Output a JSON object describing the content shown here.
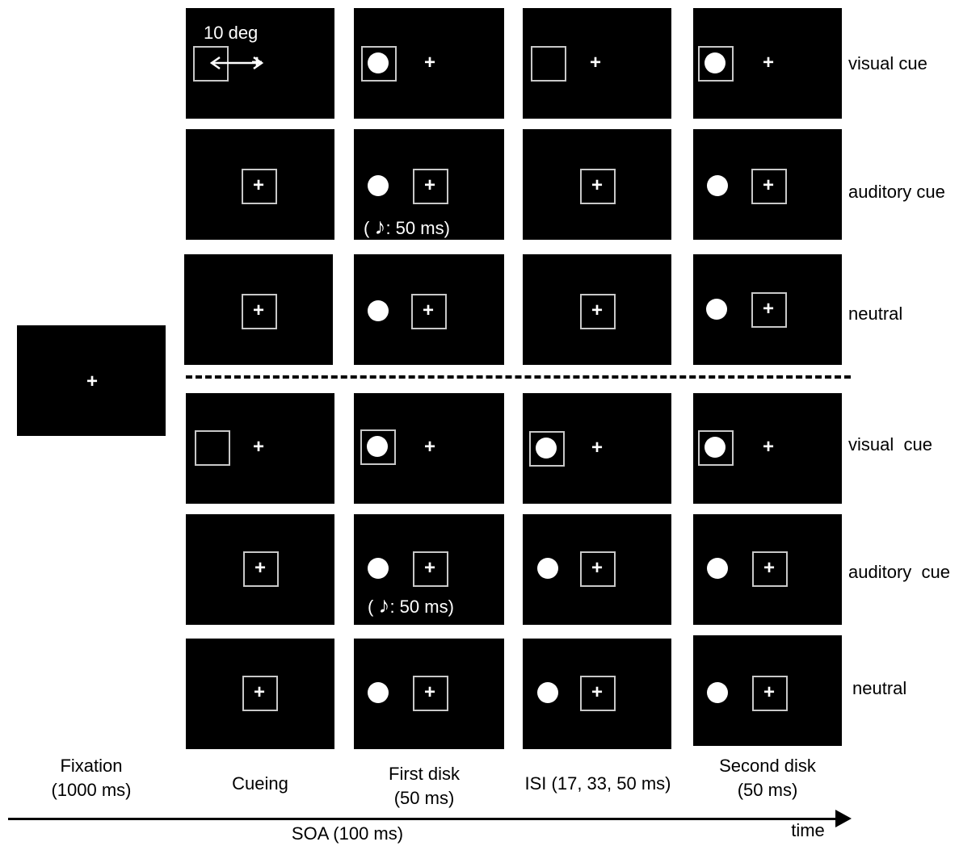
{
  "fixation": {
    "caption": "Fixation\n(1000 ms)"
  },
  "columns": [
    {
      "caption": "Cueing"
    },
    {
      "caption": "First disk\n(50 ms)"
    },
    {
      "caption": "ISI (17, 33, 50 ms)"
    },
    {
      "caption": "Second disk\n(50 ms)"
    }
  ],
  "rows": [
    {
      "label": "visual cue"
    },
    {
      "label": "auditory cue"
    },
    {
      "label": "neutral"
    },
    {
      "label": "visual  cue"
    },
    {
      "label": "auditory  cue"
    },
    {
      "label": "neutral"
    }
  ],
  "annotations": {
    "distance": "10 deg",
    "tone_top": "( ",
    "tone_top_rest": ": 50 ms)",
    "tone_bottom": "( ",
    "tone_bottom_rest": ": 50 ms)",
    "note_symbol": "♪"
  },
  "axis": {
    "soa": "SOA (100 ms)",
    "time": "time"
  }
}
